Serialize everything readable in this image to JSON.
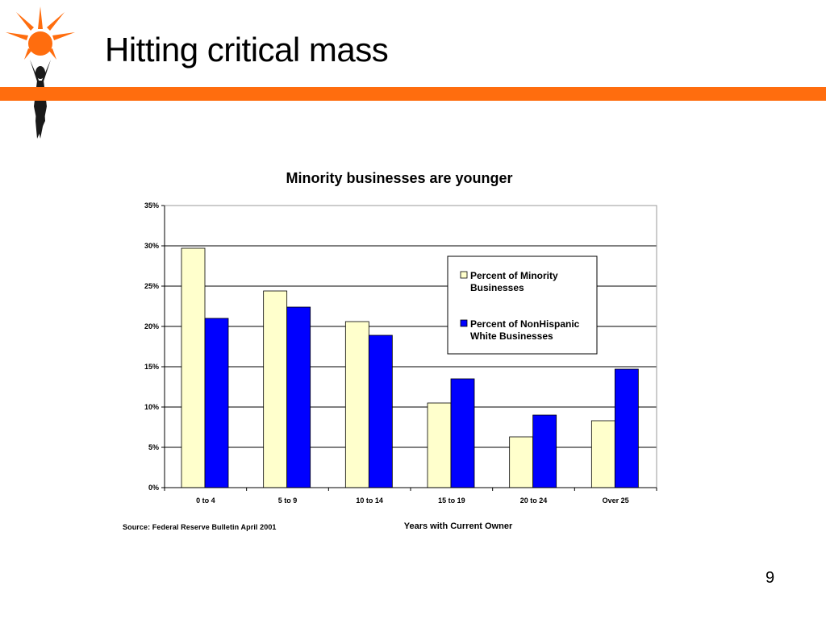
{
  "slide": {
    "title": "Hitting critical mass",
    "source": "Source: Federal Reserve Bulletin April 2001",
    "page_number": "9"
  },
  "colors": {
    "accent": "#ff6d0e",
    "minority": "#ffffcc",
    "nonhispanic": "#0000ff",
    "figure": "#1a1a1a"
  },
  "chart_data": {
    "type": "bar",
    "title": "Minority businesses are younger",
    "xlabel": "Years with Current Owner",
    "ylabel": "",
    "categories": [
      "0 to 4",
      "5 to 9",
      "10 to 14",
      "15 to 19",
      "20 to 24",
      "Over 25"
    ],
    "series": [
      {
        "name": "Percent of Minority Businesses",
        "color": "#ffffcc",
        "values": [
          29.7,
          24.4,
          20.6,
          10.5,
          6.3,
          8.3
        ]
      },
      {
        "name": "Percent of NonHispanic White Businesses",
        "color": "#0000ff",
        "values": [
          21.0,
          22.4,
          18.9,
          13.5,
          9.0,
          14.7
        ]
      }
    ],
    "ylim": [
      0,
      35
    ],
    "yticks": [
      "0%",
      "5%",
      "10%",
      "15%",
      "20%",
      "25%",
      "30%",
      "35%"
    ],
    "grid": true,
    "legend_position": "top-right"
  }
}
